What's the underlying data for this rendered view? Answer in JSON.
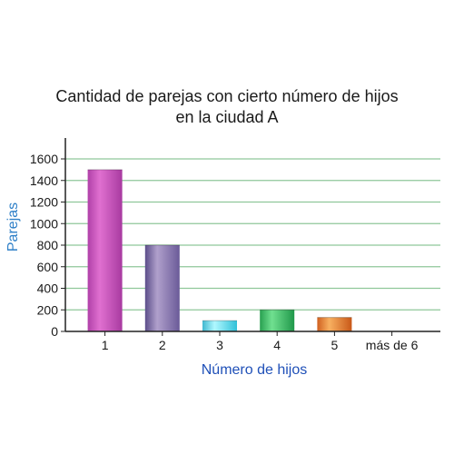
{
  "chart_data": {
    "type": "bar",
    "title_lines": [
      "Cantidad de parejas con cierto número de hijos",
      "en la ciudad A"
    ],
    "xlabel": "Número de hijos",
    "ylabel": "Parejas",
    "categories": [
      "1",
      "2",
      "3",
      "4",
      "5",
      "más de 6"
    ],
    "values": [
      1500,
      800,
      100,
      200,
      130,
      0
    ],
    "ylim": [
      0,
      1700
    ],
    "yticks": [
      0,
      200,
      400,
      600,
      800,
      1000,
      1200,
      1400,
      1600
    ],
    "grid": true,
    "legend": "none",
    "bar_colors": [
      [
        "#b040a8",
        "#e070d0",
        "#a83aa0"
      ],
      [
        "#5c4e8a",
        "#b0a0cc",
        "#6a5a98"
      ],
      [
        "#40b8d0",
        "#b0f8ff",
        "#30c0d8"
      ],
      [
        "#28a050",
        "#70e090",
        "#20984a"
      ],
      [
        "#d06020",
        "#f8b060",
        "#c85818"
      ],
      [
        "#888888",
        "#cccccc",
        "#888888"
      ]
    ],
    "grid_color": "#8fc79a",
    "axis_label_color": "#2f80c8",
    "xlabel_color": "#1f50b8"
  }
}
